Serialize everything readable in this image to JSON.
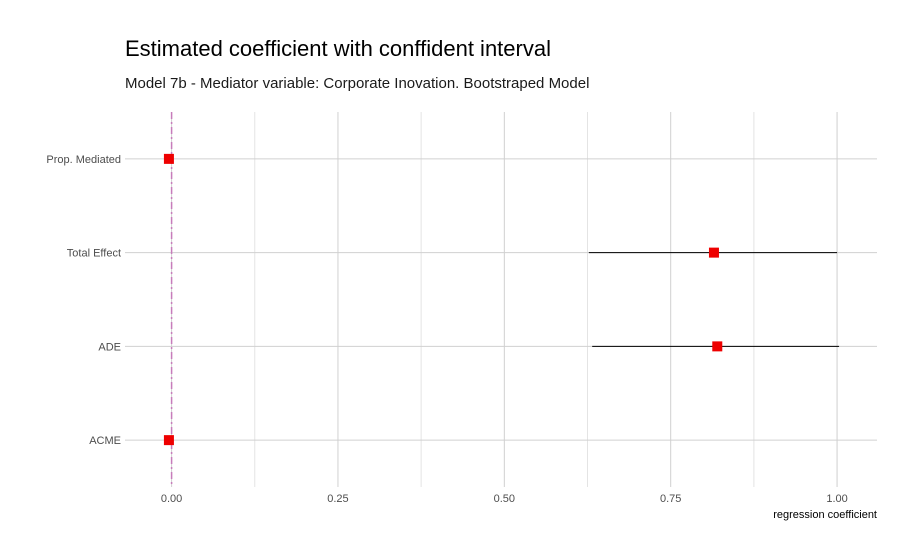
{
  "title": "Estimated coefficient with conffident interval",
  "subtitle": "Model 7b - Mediator variable: Corporate Inovation. Bootstraped Model",
  "chart_data": {
    "type": "scatter",
    "title": "Estimated coefficient with conffident interval",
    "subtitle": "Model 7b - Mediator variable: Corporate Inovation. Bootstraped Model",
    "xlabel": "regression coefficient",
    "ylabel": "",
    "xlim": [
      -0.07,
      1.06
    ],
    "x_ticks": [
      0.0,
      0.25,
      0.5,
      0.75,
      1.0
    ],
    "x_tick_labels": [
      "0.00",
      "0.25",
      "0.50",
      "0.75",
      "1.00"
    ],
    "categories": [
      "Prop. Mediated",
      "Total Effect",
      "ADE",
      "ACME"
    ],
    "estimates": [
      -0.004,
      0.815,
      0.82,
      -0.004
    ],
    "ci_lower": [
      -0.004,
      0.627,
      0.632,
      -0.004
    ],
    "ci_upper": [
      -0.004,
      1.0,
      1.003,
      -0.004
    ],
    "reference_line": 0,
    "grid": true,
    "point_color": "#ee0000",
    "ci_color": "#000000",
    "reference_line_color": "#c77cbb"
  }
}
